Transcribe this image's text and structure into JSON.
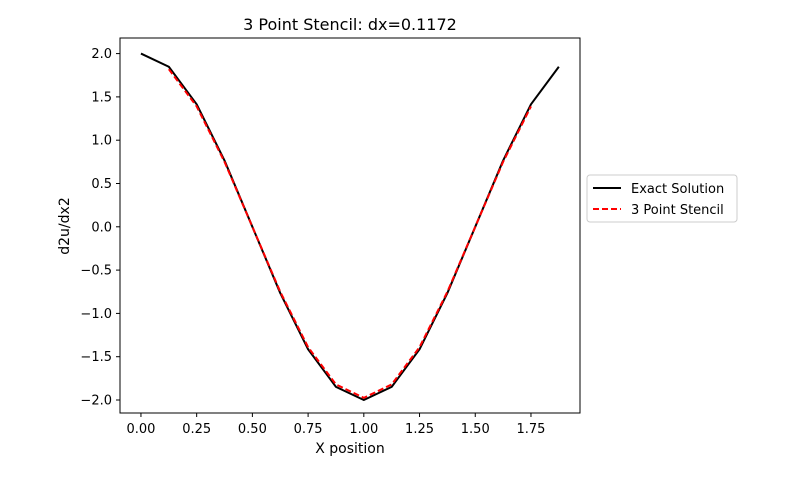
{
  "chart_data": {
    "type": "line",
    "title": "3 Point Stencil: dx=0.1172",
    "xlabel": "X position",
    "ylabel": "d2u/dx2",
    "xlim": [
      -0.094,
      1.97
    ],
    "ylim": [
      -2.15,
      2.18
    ],
    "xticks": [
      0.0,
      0.25,
      0.5,
      0.75,
      1.0,
      1.25,
      1.5,
      1.75
    ],
    "xtick_labels": [
      "0.00",
      "0.25",
      "0.50",
      "0.75",
      "1.00",
      "1.25",
      "1.50",
      "1.75"
    ],
    "yticks": [
      2.0,
      1.5,
      1.0,
      0.5,
      0.0,
      -0.5,
      -1.0,
      -1.5,
      -2.0
    ],
    "ytick_labels": [
      "2.0",
      "1.5",
      "1.0",
      "0.5",
      "0.0",
      "−0.5",
      "−1.0",
      "−1.5",
      "−2.0"
    ],
    "grid": false,
    "legend_position": "outside-right",
    "series": [
      {
        "name": "Exact Solution",
        "color": "#000000",
        "dash": "solid",
        "x": [
          0.0,
          0.125,
          0.25,
          0.375,
          0.5,
          0.625,
          0.75,
          0.875,
          1.0,
          1.125,
          1.25,
          1.375,
          1.5,
          1.625,
          1.75,
          1.875
        ],
        "y": [
          2.0,
          1.848,
          1.414,
          0.765,
          0.0,
          -0.765,
          -1.414,
          -1.848,
          -2.0,
          -1.848,
          -1.414,
          -0.765,
          0.0,
          0.765,
          1.414,
          1.848
        ]
      },
      {
        "name": "3 Point Stencil",
        "color": "#ff0000",
        "dash": "dashed",
        "x": [
          0.125,
          0.25,
          0.375,
          0.5,
          0.625,
          0.75,
          0.875,
          1.0,
          1.125,
          1.25,
          1.375,
          1.5,
          1.625,
          1.75
        ],
        "y": [
          1.82,
          1.39,
          0.75,
          0.0,
          -0.75,
          -1.39,
          -1.82,
          -1.975,
          -1.82,
          -1.39,
          -0.75,
          0.0,
          0.75,
          1.39
        ]
      }
    ]
  }
}
